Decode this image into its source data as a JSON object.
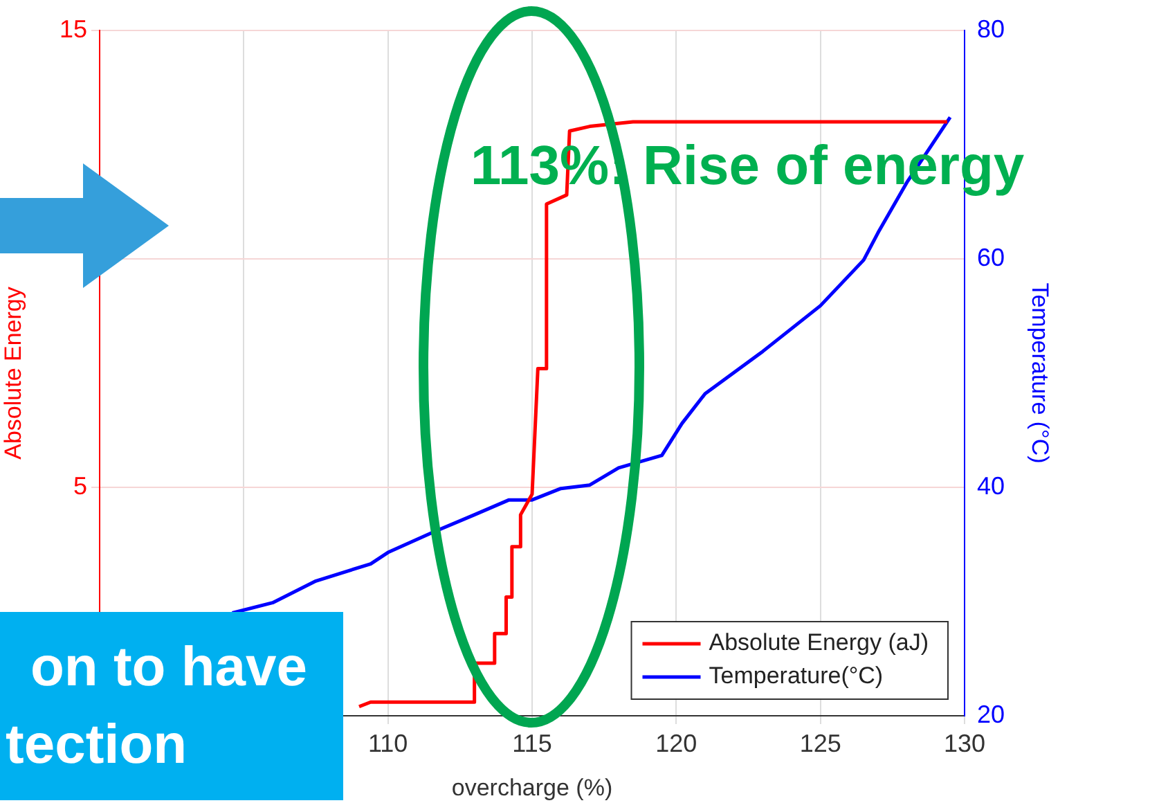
{
  "chart_data": {
    "type": "line",
    "xlabel": "overcharge (%)",
    "ylabel": "Absolute Energy",
    "y2label": "Temperature (°C)",
    "xlim": [
      100,
      130
    ],
    "xticks": [
      {
        "value": 100,
        "label": null
      },
      {
        "value": 105,
        "label": null
      },
      110,
      115,
      120,
      125,
      130
    ],
    "ylim": [
      0,
      15
    ],
    "yticks": [
      {
        "value": 0,
        "label": null
      },
      5,
      {
        "value": 10,
        "label": null
      },
      15
    ],
    "y2lim": [
      20,
      80
    ],
    "y2ticks": [
      20,
      40,
      60,
      80
    ],
    "grid": true,
    "legend": "bottom right",
    "line_style": "solid",
    "marker": "none",
    "annotations": [
      "113%: Rise of energy",
      "on to have",
      "tection"
    ],
    "series": [
      {
        "name": "Absolute Energy (aJ)",
        "color": "#ff0000",
        "x": [
          109.0,
          109.4,
          112.0,
          113.0,
          113.0,
          113.7,
          113.7,
          114.1,
          114.1,
          114.3,
          114.3,
          114.6,
          114.6,
          115.0,
          115.2,
          115.4,
          115.5,
          115.5,
          116.2,
          116.3,
          117.0,
          118.5,
          129.4
        ],
        "values": [
          0.2,
          0.3,
          0.3,
          0.3,
          1.15,
          1.15,
          1.8,
          1.8,
          2.6,
          2.6,
          3.7,
          3.7,
          4.4,
          4.85,
          7.6,
          7.6,
          7.6,
          11.2,
          11.4,
          12.8,
          12.9,
          13.0,
          13.0
        ]
      },
      {
        "name": "Temperature(°C)",
        "color": "#0000ff",
        "axis": "y2",
        "x": [
          104.6,
          106.0,
          107.5,
          109.4,
          110.0,
          111.5,
          113.0,
          114.2,
          115.0,
          116.0,
          117.0,
          118.0,
          119.5,
          120.2,
          121.0,
          123.0,
          125.0,
          126.5,
          127.0,
          128.0,
          129.5
        ],
        "values": [
          29.0,
          29.9,
          31.8,
          33.3,
          34.3,
          36.0,
          37.6,
          38.9,
          38.9,
          39.9,
          40.2,
          41.7,
          42.8,
          45.6,
          48.2,
          51.9,
          55.9,
          59.9,
          62.3,
          66.7,
          72.4
        ]
      }
    ]
  }
}
